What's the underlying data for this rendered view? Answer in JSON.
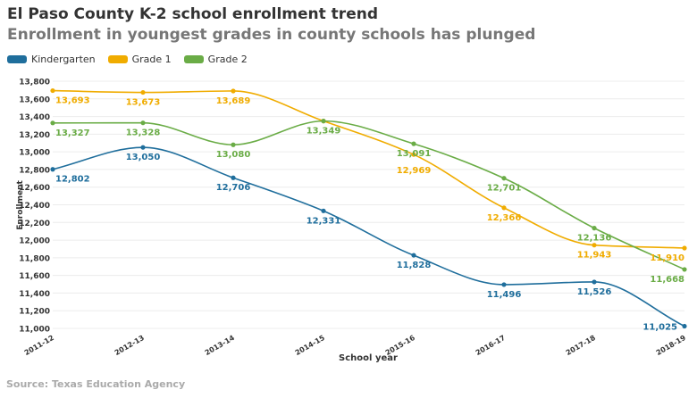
{
  "title": "El Paso County K-2 school enrollment trend",
  "subtitle": "Enrollment in youngest grades in county schools has plunged",
  "source": "Source: Texas Education Agency",
  "chart_data": {
    "type": "line",
    "xlabel": "School year",
    "ylabel": "Enrollment",
    "categories": [
      "2011-12",
      "2012-13",
      "2013-14",
      "2014-15",
      "2015-16",
      "2016-17",
      "2017-18",
      "2018-19"
    ],
    "ylim": [
      11000,
      13800
    ],
    "yticks": [
      11000,
      11200,
      11400,
      11600,
      11800,
      12000,
      12200,
      12400,
      12600,
      12800,
      13000,
      13200,
      13400,
      13600,
      13800
    ],
    "grid": true,
    "legend_position": "top-left",
    "series": [
      {
        "name": "Kindergarten",
        "color": "#1f6e9c",
        "values": [
          12802,
          13050,
          12706,
          12331,
          11828,
          11496,
          11526,
          11025
        ],
        "hidden_labels": []
      },
      {
        "name": "Grade 1",
        "color": "#f0ac00",
        "values": [
          13693,
          13673,
          13689,
          13349,
          12969,
          12366,
          11943,
          11910
        ],
        "hidden_labels": [
          3
        ]
      },
      {
        "name": "Grade 2",
        "color": "#6aac46",
        "values": [
          13327,
          13328,
          13080,
          13349,
          13091,
          12701,
          12136,
          11668
        ],
        "hidden_labels": []
      }
    ]
  }
}
